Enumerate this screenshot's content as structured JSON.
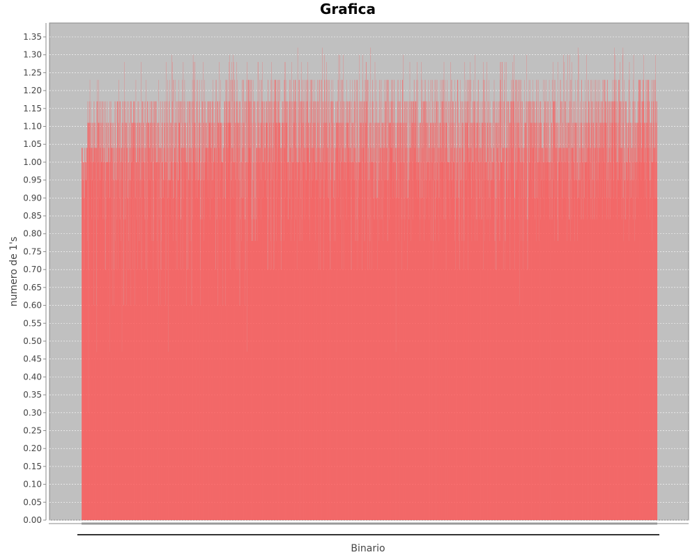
{
  "chart_data": {
    "type": "bar",
    "title": "Grafica",
    "xlabel": "Binario",
    "ylabel": "numero de 1's",
    "ylim": [
      0,
      1.38
    ],
    "y_ticks": [
      "0.00",
      "0.05",
      "0.10",
      "0.15",
      "0.20",
      "0.25",
      "0.30",
      "0.35",
      "0.40",
      "0.45",
      "0.50",
      "0.55",
      "0.60",
      "0.65",
      "0.70",
      "0.75",
      "0.80",
      "0.85",
      "0.90",
      "0.95",
      "1.00",
      "1.05",
      "1.10",
      "1.15",
      "1.20",
      "1.25",
      "1.30",
      "1.35"
    ],
    "grid": true,
    "legend": "none",
    "bar_count": 4096,
    "envelope": [
      {
        "from": 0.0,
        "to": 0.009,
        "low": 0.47,
        "high": 1.11
      },
      {
        "from": 0.009,
        "to": 0.058,
        "low": 0.47,
        "high": 1.23
      },
      {
        "from": 0.058,
        "to": 0.15,
        "low": 0.6,
        "high": 1.28
      },
      {
        "from": 0.15,
        "to": 0.288,
        "low": 0.6,
        "high": 1.3
      },
      {
        "from": 0.288,
        "to": 0.545,
        "low": 0.7,
        "high": 1.32
      },
      {
        "from": 0.545,
        "to": 0.8,
        "low": 0.7,
        "high": 1.3
      },
      {
        "from": 0.8,
        "to": 1.0,
        "low": 0.78,
        "high": 1.32
      }
    ],
    "dips": [
      {
        "at": 0.0,
        "value": 0.0
      },
      {
        "at": 0.012,
        "value": 0.3
      },
      {
        "at": 0.287,
        "value": 0.47
      },
      {
        "at": 0.546,
        "value": 0.47
      },
      {
        "at": 0.07,
        "value": 0.47
      },
      {
        "at": 0.151,
        "value": 0.47
      },
      {
        "at": 0.761,
        "value": 0.6
      }
    ],
    "colors": {
      "bar": "#ff5555",
      "plot_background": "#c0c0c0",
      "gridline": "#ffffff",
      "axis": "#888888"
    }
  }
}
